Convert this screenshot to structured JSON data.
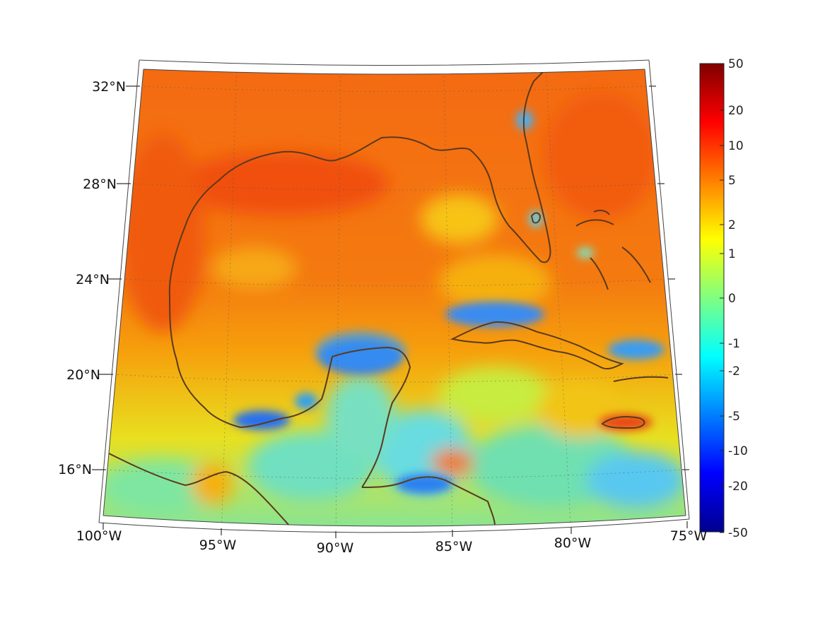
{
  "map": {
    "projection": "conic",
    "lon_range": [
      -100,
      -75
    ],
    "lat_range": [
      14,
      33
    ],
    "lon_ticks": [
      "100°W",
      "95°W",
      "90°W",
      "85°W",
      "80°W",
      "75°W"
    ],
    "lat_ticks": [
      "16°N",
      "20°N",
      "24°N",
      "28°N",
      "32°N"
    ],
    "coastline_color": "#5a3a1c",
    "grid": "dotted"
  },
  "colorbar": {
    "colormap": "jet",
    "scale": "symmetric-log",
    "labels": [
      "50",
      "20",
      "10",
      "5",
      "2",
      "1",
      "0",
      "-1",
      "-2",
      "-5",
      "-10",
      "-20",
      "-50"
    ]
  }
}
